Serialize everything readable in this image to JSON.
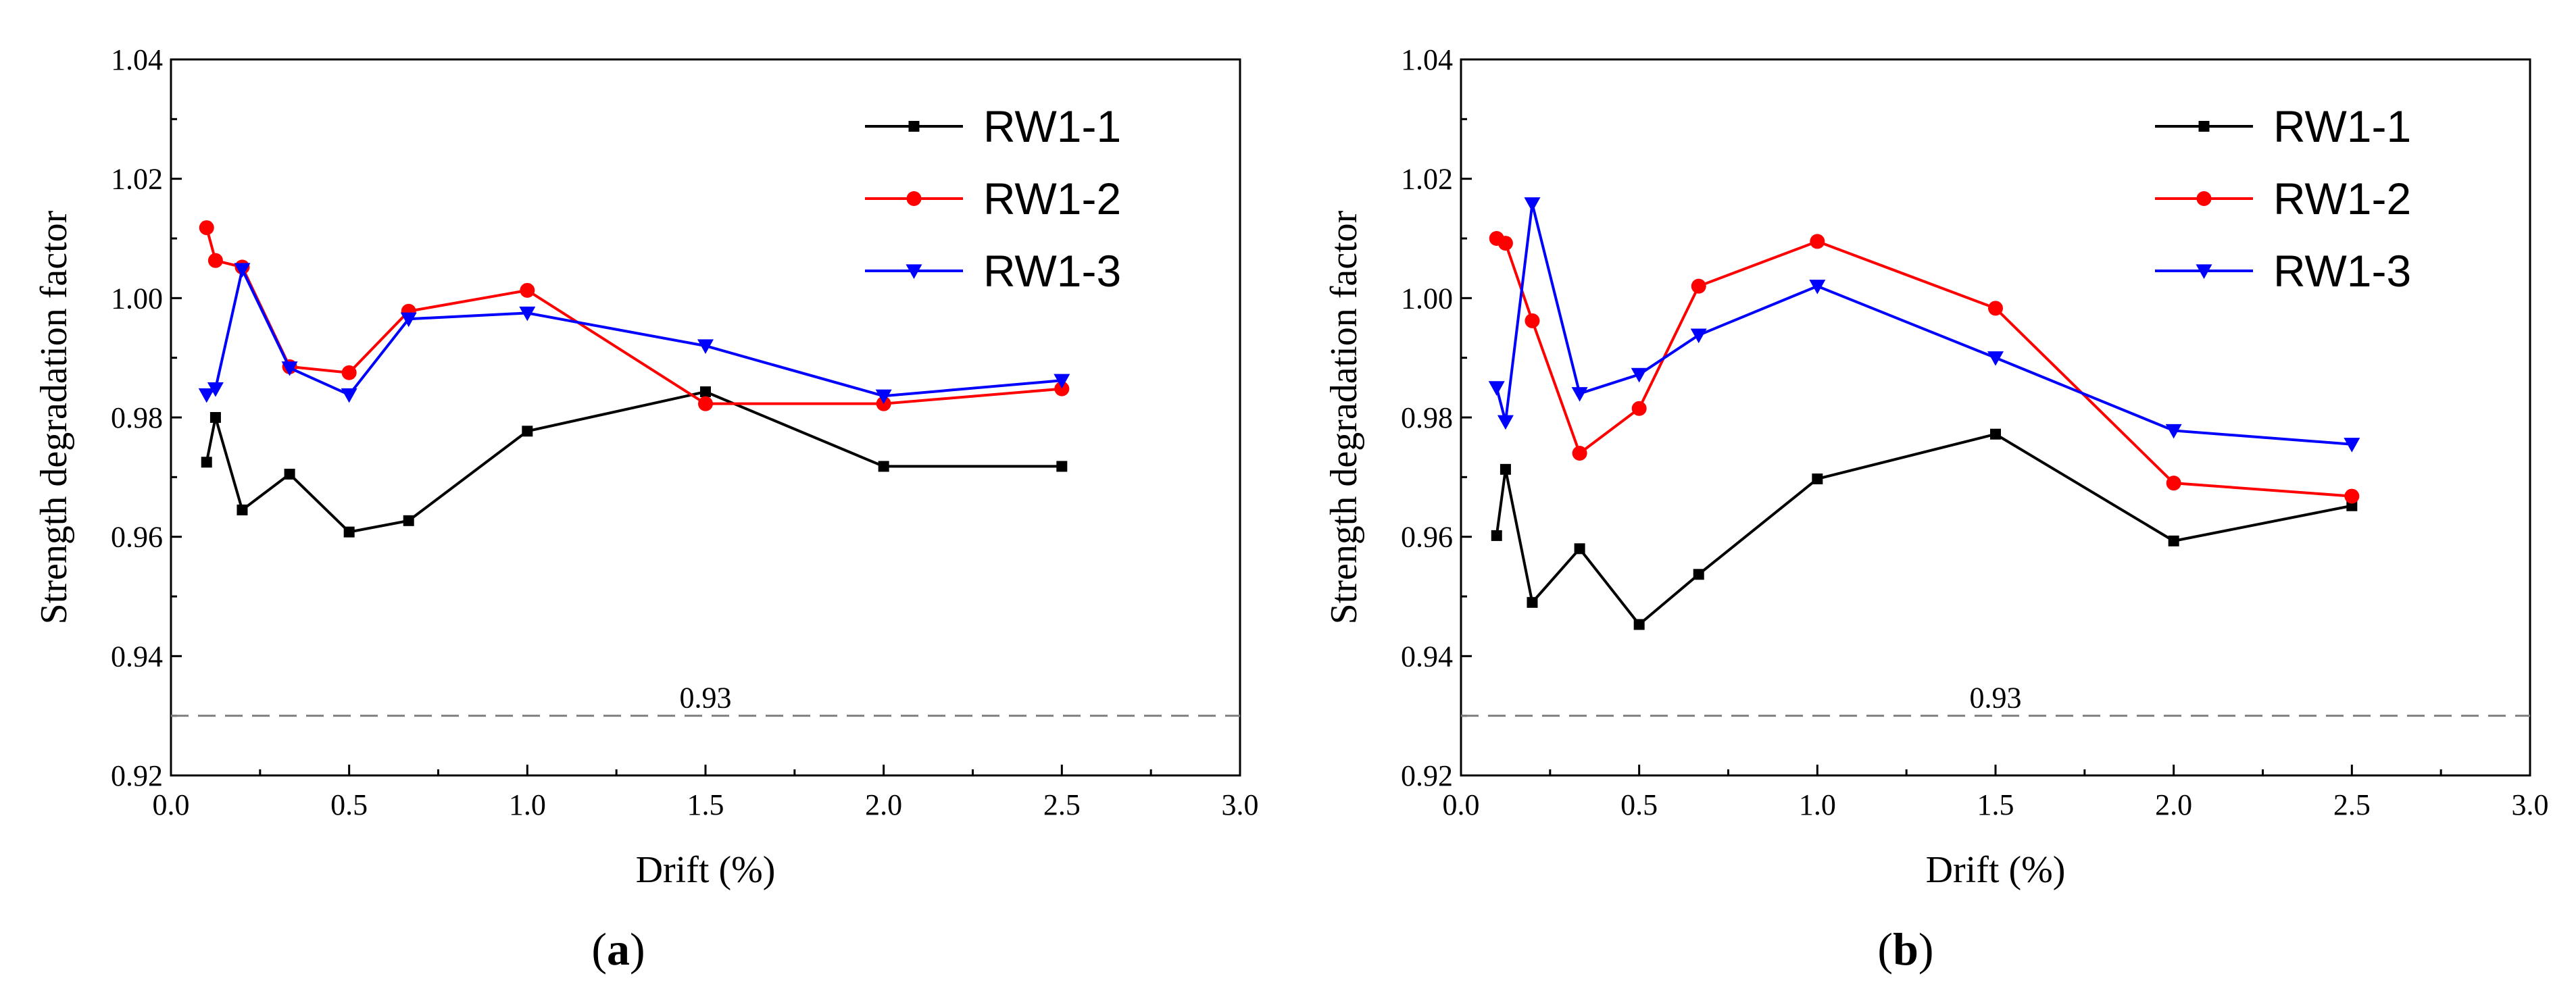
{
  "chart_data": [
    {
      "type": "line",
      "panel_label": "a",
      "xlabel": "Drift (%)",
      "ylabel": "Strength degradation factor",
      "xlim": [
        0.0,
        3.0
      ],
      "ylim": [
        0.92,
        1.04
      ],
      "xticks": [
        "0.0",
        "0.5",
        "1.0",
        "1.5",
        "2.0",
        "2.5",
        "3.0"
      ],
      "yticks": [
        "0.92",
        "0.94",
        "0.96",
        "0.98",
        "1.00",
        "1.02",
        "1.04"
      ],
      "reference_line": {
        "y": 0.93,
        "label": "0.93"
      },
      "legend_position": "top-right",
      "series": [
        {
          "name": "RW1-1",
          "color": "#000000",
          "marker": "square",
          "x": [
            0.1,
            0.125,
            0.2,
            0.333,
            0.5,
            0.667,
            1.0,
            1.5,
            2.0,
            2.5
          ],
          "y": [
            0.9725,
            0.98,
            0.9645,
            0.9705,
            0.9608,
            0.9627,
            0.9777,
            0.9843,
            0.9718,
            0.9718
          ]
        },
        {
          "name": "RW1-2",
          "color": "#ff0000",
          "marker": "circle",
          "x": [
            0.1,
            0.125,
            0.2,
            0.333,
            0.5,
            0.667,
            1.0,
            1.5,
            2.0,
            2.5
          ],
          "y": [
            1.0118,
            1.0063,
            1.0052,
            0.9885,
            0.9875,
            0.9978,
            1.0013,
            0.9823,
            0.9823,
            0.9848
          ]
        },
        {
          "name": "RW1-3",
          "color": "#0000ff",
          "marker": "triangle-down",
          "x": [
            0.1,
            0.125,
            0.2,
            0.333,
            0.5,
            0.667,
            1.0,
            1.5,
            2.0,
            2.5
          ],
          "y": [
            0.9838,
            0.9848,
            1.0048,
            0.9883,
            0.9838,
            0.9965,
            0.9975,
            0.992,
            0.9836,
            0.9862
          ]
        }
      ]
    },
    {
      "type": "line",
      "panel_label": "b",
      "xlabel": "Drift (%)",
      "ylabel": "Strength degradation factor",
      "xlim": [
        0.0,
        3.0
      ],
      "ylim": [
        0.92,
        1.04
      ],
      "xticks": [
        "0.0",
        "0.5",
        "1.0",
        "1.5",
        "2.0",
        "2.5",
        "3.0"
      ],
      "yticks": [
        "0.92",
        "0.94",
        "0.96",
        "0.98",
        "1.00",
        "1.02",
        "1.04"
      ],
      "reference_line": {
        "y": 0.93,
        "label": "0.93"
      },
      "legend_position": "top-right",
      "series": [
        {
          "name": "RW1-1",
          "color": "#000000",
          "marker": "square",
          "x": [
            0.1,
            0.125,
            0.2,
            0.333,
            0.5,
            0.667,
            1.0,
            1.5,
            2.0,
            2.5
          ],
          "y": [
            0.9602,
            0.9713,
            0.949,
            0.958,
            0.9453,
            0.9537,
            0.9697,
            0.9772,
            0.9593,
            0.9652
          ]
        },
        {
          "name": "RW1-2",
          "color": "#ff0000",
          "marker": "circle",
          "x": [
            0.1,
            0.125,
            0.2,
            0.333,
            0.5,
            0.667,
            1.0,
            1.5,
            2.0,
            2.5
          ],
          "y": [
            1.01,
            1.0092,
            0.9962,
            0.974,
            0.9815,
            1.002,
            1.0095,
            0.9983,
            0.969,
            0.9668
          ]
        },
        {
          "name": "RW1-3",
          "color": "#0000ff",
          "marker": "triangle-down",
          "x": [
            0.1,
            0.125,
            0.2,
            0.333,
            0.5,
            0.667,
            1.0,
            1.5,
            2.0,
            2.5
          ],
          "y": [
            0.985,
            0.9793,
            1.0158,
            0.984,
            0.9872,
            0.9938,
            1.002,
            0.99,
            0.9778,
            0.9755
          ]
        }
      ]
    }
  ]
}
